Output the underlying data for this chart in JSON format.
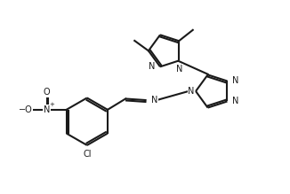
{
  "background_color": "#ffffff",
  "line_color": "#1a1a1a",
  "line_width": 1.5,
  "font_size": 7.0,
  "figsize": [
    3.26,
    2.19
  ],
  "dpi": 100,
  "xlim": [
    0,
    10
  ],
  "ylim": [
    0,
    6.7
  ]
}
